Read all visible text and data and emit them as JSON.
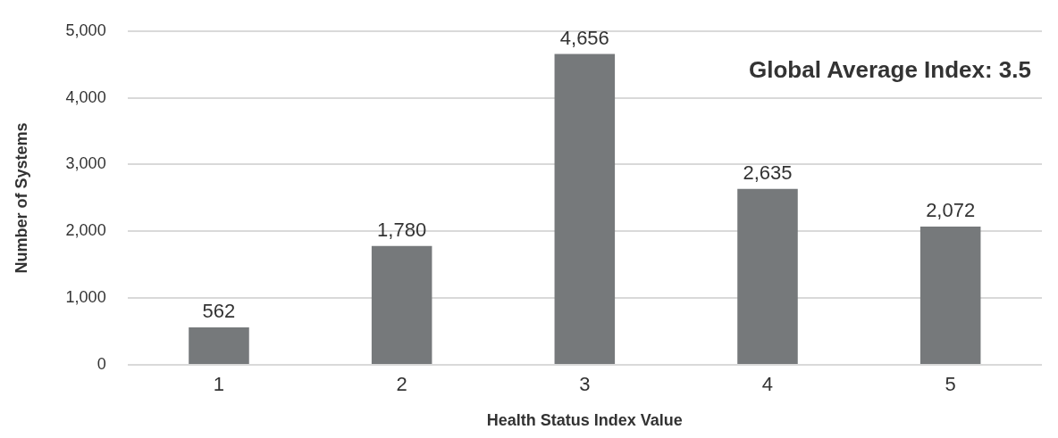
{
  "chart_data": {
    "type": "bar",
    "xlabel": "Health Status Index Value",
    "ylabel": "Number of Systems",
    "categories": [
      "1",
      "2",
      "3",
      "4",
      "5"
    ],
    "values": [
      562,
      1780,
      4656,
      2635,
      2072
    ],
    "color": "#76797b",
    "value_labels": [
      "562",
      "1,780",
      "4,656",
      "2,635",
      "2,072"
    ],
    "ylim": [
      0,
      5000
    ],
    "yticks": [
      0,
      {
        "value": 1000,
        "label": "1,000"
      },
      {
        "value": 2000,
        "label": "2,000"
      },
      {
        "value": 3000,
        "label": "3,000"
      },
      {
        "value": 4000,
        "label": "4,000"
      },
      {
        "value": 5000,
        "label": "5,000"
      }
    ],
    "grid": "y",
    "annotations": [
      "Global Average Index: 3.5"
    ]
  }
}
